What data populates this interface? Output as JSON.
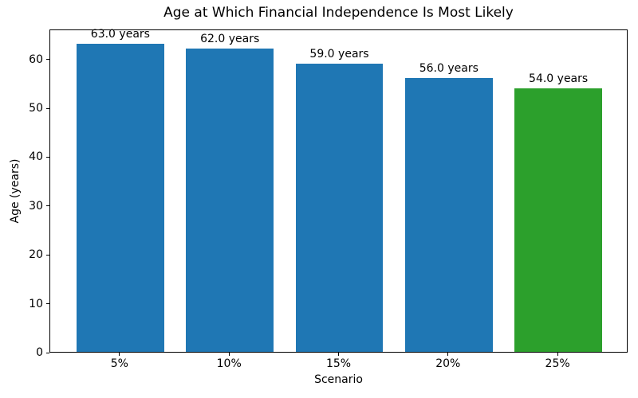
{
  "chart_data": {
    "type": "bar",
    "title": "Age at Which Financial Independence Is Most Likely",
    "xlabel": "Scenario",
    "ylabel": "Age (years)",
    "categories": [
      "5%",
      "10%",
      "15%",
      "20%",
      "25%"
    ],
    "values": [
      63.0,
      62.0,
      59.0,
      56.0,
      54.0
    ],
    "bar_labels": [
      "63.0 years",
      "62.0 years",
      "59.0 years",
      "56.0 years",
      "54.0 years"
    ],
    "bar_colors": [
      "#1f77b4",
      "#1f77b4",
      "#1f77b4",
      "#1f77b4",
      "#2ca02c"
    ],
    "default_bar_color": "#1f77b4",
    "highlight_bar_color": "#2ca02c",
    "yticks": [
      0,
      10,
      20,
      30,
      40,
      50,
      60
    ],
    "ylim": [
      0,
      66.15
    ],
    "bar_width_frac": 0.8,
    "grid": false,
    "legend": null,
    "text_color": "#000000",
    "background_color": "#ffffff"
  }
}
